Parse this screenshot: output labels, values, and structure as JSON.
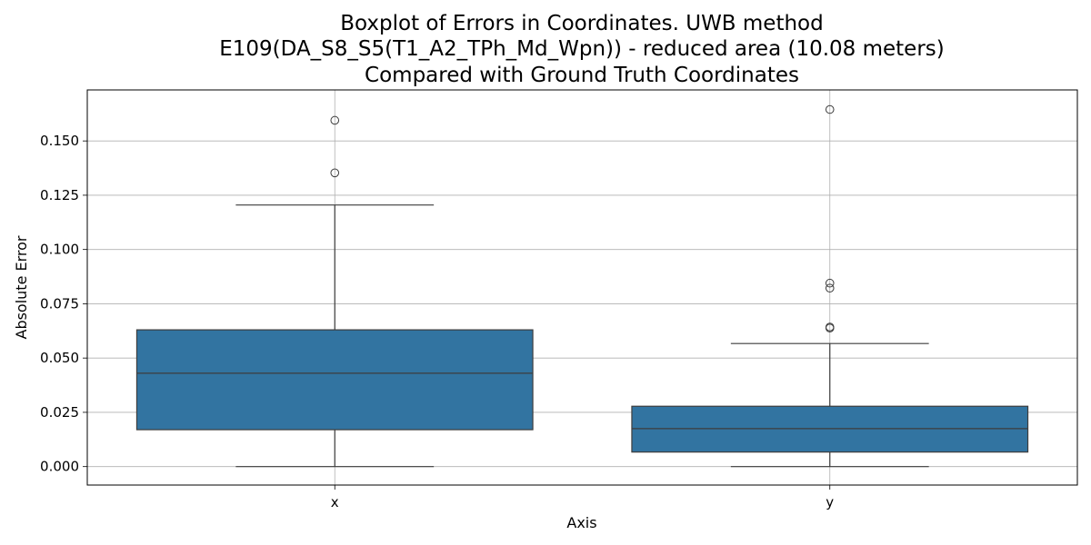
{
  "chart_data": {
    "type": "boxplot",
    "title": [
      "Boxplot of Errors in Coordinates. UWB method",
      "E109(DA_S8_S5(T1_A2_TPh_Md_Wpn)) - reduced area (10.08 meters)",
      "Compared with Ground Truth Coordinates"
    ],
    "xlabel": "Axis",
    "ylabel": "Absolute Error",
    "ylim": [
      -0.0085,
      0.1735
    ],
    "yticks": [
      0.0,
      0.025,
      0.05,
      0.075,
      0.1,
      0.125,
      0.15
    ],
    "ytick_labels": [
      "0.000",
      "0.025",
      "0.050",
      "0.075",
      "0.100",
      "0.125",
      "0.150"
    ],
    "grid": true,
    "box_color": "#3274a1",
    "edge_color": "#3d3d3d",
    "categories": [
      "x",
      "y"
    ],
    "boxes": [
      {
        "category": "x",
        "whisker_low": 0.0,
        "q1": 0.017,
        "median": 0.043,
        "q3": 0.063,
        "whisker_high": 0.1205,
        "outliers": [
          0.1353,
          0.1595
        ]
      },
      {
        "category": "y",
        "whisker_low": 0.0,
        "q1": 0.0067,
        "median": 0.0175,
        "q3": 0.0278,
        "whisker_high": 0.0567,
        "outliers": [
          0.0638,
          0.0643,
          0.0822,
          0.0845,
          0.1645
        ]
      }
    ]
  }
}
